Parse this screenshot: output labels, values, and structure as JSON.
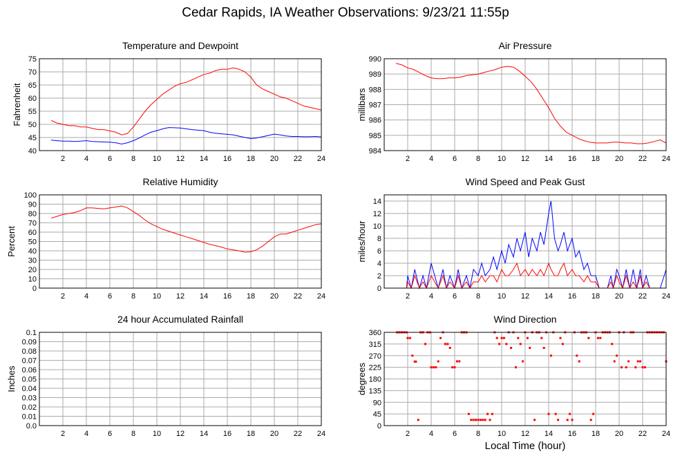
{
  "page": {
    "title": "Cedar Rapids, IA Weather Observations: 9/23/21 11:55p"
  },
  "colors": {
    "primary": "#ff0000",
    "secondary": "#0000ff",
    "grid": "#aaaaaa",
    "frame": "#000000"
  },
  "chart_data": [
    {
      "id": "temp",
      "type": "line",
      "title": "Temperature and Dewpoint",
      "ylabel": "Fahrenheit",
      "xlim": [
        0,
        24
      ],
      "ylim": [
        40,
        75
      ],
      "xticks": [
        2,
        4,
        6,
        8,
        10,
        12,
        14,
        16,
        18,
        20,
        22,
        24
      ],
      "yticks": [
        40,
        45,
        50,
        55,
        60,
        65,
        70,
        75
      ],
      "grid": true,
      "series": [
        {
          "color": "#ff0000",
          "x": [
            1,
            1.5,
            2,
            2.5,
            3,
            3.5,
            4,
            4.5,
            5,
            5.5,
            6,
            6.5,
            7,
            7.5,
            8,
            8.5,
            9,
            9.5,
            10,
            10.5,
            11,
            11.5,
            12,
            12.5,
            13,
            13.5,
            14,
            14.5,
            15,
            15.5,
            16,
            16.5,
            17,
            17.5,
            18,
            18.5,
            19,
            19.5,
            20,
            20.5,
            21,
            21.5,
            22,
            22.5,
            23,
            23.5,
            24
          ],
          "y": [
            51.5,
            50.5,
            50,
            49.5,
            49.5,
            49,
            49,
            48.5,
            48,
            48,
            47.5,
            47,
            46,
            46.5,
            49,
            52,
            55,
            57.5,
            59.5,
            61.5,
            63,
            64.5,
            65.5,
            66,
            67,
            68,
            69,
            69.5,
            70.5,
            71,
            71,
            71.5,
            71,
            70,
            68,
            65,
            63.5,
            62.5,
            61.5,
            60.5,
            60,
            59,
            58,
            57,
            56.5,
            56,
            55.5
          ]
        },
        {
          "color": "#0000ff",
          "x": [
            1,
            1.5,
            2,
            2.5,
            3,
            3.5,
            4,
            4.5,
            5,
            5.5,
            6,
            6.5,
            7,
            7.5,
            8,
            8.5,
            9,
            9.5,
            10,
            10.5,
            11,
            11.5,
            12,
            12.5,
            13,
            13.5,
            14,
            14.5,
            15,
            15.5,
            16,
            16.5,
            17,
            17.5,
            18,
            18.5,
            19,
            19.5,
            20,
            20.5,
            21,
            21.5,
            22,
            22.5,
            23,
            23.5,
            24
          ],
          "y": [
            44,
            43.8,
            43.6,
            43.6,
            43.5,
            43.6,
            43.8,
            43.5,
            43.4,
            43.3,
            43.2,
            43,
            42.5,
            43,
            43.8,
            44.8,
            46,
            47,
            47.6,
            48.3,
            48.8,
            48.7,
            48.6,
            48.3,
            48,
            47.8,
            47.6,
            47,
            46.6,
            46.4,
            46.2,
            46,
            45.5,
            45,
            44.6,
            44.8,
            45.3,
            45.8,
            46.3,
            46,
            45.6,
            45.4,
            45.4,
            45.3,
            45.3,
            45.4,
            45.2
          ]
        }
      ]
    },
    {
      "id": "pressure",
      "type": "line",
      "title": "Air Pressure",
      "ylabel": "millibars",
      "xlim": [
        0,
        24
      ],
      "ylim": [
        984,
        990
      ],
      "xticks": [
        2,
        4,
        6,
        8,
        10,
        12,
        14,
        16,
        18,
        20,
        22,
        24
      ],
      "yticks": [
        984,
        985,
        986,
        987,
        988,
        989,
        990
      ],
      "grid": true,
      "series": [
        {
          "color": "#ff0000",
          "x": [
            1,
            1.5,
            2,
            2.5,
            3,
            3.5,
            4,
            4.5,
            5,
            5.5,
            6,
            6.5,
            7,
            7.5,
            8,
            8.5,
            9,
            9.5,
            10,
            10.5,
            11,
            11.5,
            12,
            12.5,
            13,
            13.5,
            14,
            14.5,
            15,
            15.5,
            16,
            16.5,
            17,
            17.5,
            18,
            18.5,
            19,
            19.5,
            20,
            20.5,
            21,
            21.5,
            22,
            22.5,
            23,
            23.5,
            24
          ],
          "y": [
            989.7,
            989.6,
            989.4,
            989.3,
            989.1,
            988.9,
            988.75,
            988.7,
            988.7,
            988.75,
            988.75,
            988.8,
            988.9,
            988.95,
            989.0,
            989.1,
            989.2,
            989.3,
            989.45,
            989.5,
            989.45,
            989.2,
            988.85,
            988.5,
            988.0,
            987.4,
            986.8,
            986.1,
            985.6,
            985.2,
            985.0,
            984.8,
            984.65,
            984.55,
            984.5,
            984.5,
            984.5,
            984.55,
            984.55,
            984.5,
            984.5,
            984.45,
            984.45,
            984.5,
            984.6,
            984.7,
            984.5
          ]
        }
      ]
    },
    {
      "id": "humidity",
      "type": "line",
      "title": "Relative Humidity",
      "ylabel": "Percent",
      "xlim": [
        0,
        24
      ],
      "ylim": [
        0,
        100
      ],
      "xticks": [
        2,
        4,
        6,
        8,
        10,
        12,
        14,
        16,
        18,
        20,
        22,
        24
      ],
      "yticks": [
        0,
        10,
        20,
        30,
        40,
        50,
        60,
        70,
        80,
        90,
        100
      ],
      "grid": true,
      "series": [
        {
          "color": "#ff0000",
          "x": [
            1,
            1.5,
            2,
            2.5,
            3,
            3.5,
            4,
            4.5,
            5,
            5.5,
            6,
            6.5,
            7,
            7.5,
            8,
            8.5,
            9,
            9.5,
            10,
            10.5,
            11,
            11.5,
            12,
            12.5,
            13,
            13.5,
            14,
            14.5,
            15,
            15.5,
            16,
            16.5,
            17,
            17.5,
            18,
            18.5,
            19,
            19.5,
            20,
            20.5,
            21,
            21.5,
            22,
            22.5,
            23,
            23.5,
            24
          ],
          "y": [
            75,
            77,
            79,
            80,
            81,
            83,
            86,
            86,
            85.5,
            85,
            86,
            87,
            88,
            86,
            82,
            78,
            73,
            69,
            66,
            63,
            61,
            59,
            57,
            55,
            53,
            51,
            49,
            47,
            45.5,
            44,
            42,
            41,
            40,
            38.5,
            39,
            41,
            45,
            50,
            55,
            58,
            58,
            60,
            62,
            64,
            66,
            68,
            69
          ]
        }
      ]
    },
    {
      "id": "wind",
      "type": "line",
      "title": "Wind Speed and Peak Gust",
      "ylabel": "miles/hour",
      "xlim": [
        0,
        24
      ],
      "ylim": [
        0,
        15
      ],
      "xticks": [
        2,
        4,
        6,
        8,
        10,
        12,
        14,
        16,
        18,
        20,
        22,
        24
      ],
      "yticks": [
        0,
        2,
        4,
        6,
        8,
        10,
        12,
        14
      ],
      "grid": true,
      "series": [
        {
          "color": "#0000ff",
          "x": [
            1,
            1.9,
            2,
            2.3,
            2.6,
            3,
            3.3,
            3.6,
            4,
            4.3,
            4.6,
            5,
            5.3,
            5.6,
            6,
            6.3,
            6.6,
            7,
            7.3,
            7.6,
            8,
            8.3,
            8.6,
            9,
            9.3,
            9.6,
            10,
            10.3,
            10.6,
            11,
            11.3,
            11.6,
            12,
            12.3,
            12.6,
            13,
            13.3,
            13.6,
            14,
            14.2,
            14.5,
            14.8,
            15,
            15.3,
            15.6,
            16,
            16.3,
            16.6,
            17,
            17.3,
            17.6,
            18,
            18.3,
            18.6,
            19,
            19.3,
            19.5,
            19.8,
            20,
            20.3,
            20.6,
            20.9,
            21.2,
            21.5,
            21.8,
            22,
            22.3,
            22.6,
            23,
            23.5,
            24
          ],
          "y": [
            0,
            0,
            2,
            0,
            3,
            0,
            2,
            0,
            4,
            2,
            0,
            3,
            0,
            2,
            0,
            3,
            0,
            2,
            0,
            3,
            2,
            4,
            2,
            3,
            5,
            3,
            6,
            4,
            7,
            5,
            8,
            6,
            9,
            5,
            8,
            6,
            9,
            7,
            12,
            14,
            8,
            6,
            7,
            9,
            6,
            8,
            5,
            6,
            3,
            4,
            2,
            2,
            0,
            0,
            0,
            2,
            0,
            3,
            2,
            0,
            3,
            0,
            3,
            0,
            3,
            0,
            2,
            0,
            0,
            0,
            3
          ]
        },
        {
          "color": "#ff0000",
          "x": [
            1,
            1.9,
            2,
            2.3,
            2.6,
            3,
            3.3,
            3.6,
            4,
            4.3,
            4.6,
            5,
            5.3,
            5.6,
            6,
            6.3,
            6.6,
            7,
            7.3,
            7.6,
            8,
            8.3,
            8.6,
            9,
            9.3,
            9.6,
            10,
            10.3,
            10.6,
            11,
            11.3,
            11.6,
            12,
            12.3,
            12.6,
            13,
            13.3,
            13.6,
            14,
            14.2,
            14.5,
            14.8,
            15,
            15.3,
            15.6,
            16,
            16.3,
            16.6,
            17,
            17.3,
            17.6,
            18,
            18.3,
            18.6,
            19,
            19.3,
            19.5,
            19.8,
            20,
            20.3,
            20.6,
            20.9,
            21.2,
            21.5,
            21.8,
            22,
            22.3,
            22.6,
            23,
            23.5,
            24
          ],
          "y": [
            0,
            0,
            1,
            0,
            2,
            0,
            1,
            0,
            2,
            1,
            0,
            2,
            0,
            1,
            0,
            2,
            0,
            1,
            0,
            1,
            1,
            2,
            1,
            2,
            2,
            1,
            3,
            2,
            2,
            3,
            4,
            2,
            3,
            2,
            3,
            2,
            3,
            2,
            4,
            3,
            2,
            2,
            3,
            4,
            2,
            3,
            2,
            2,
            1,
            2,
            1,
            1,
            0,
            0,
            0,
            1,
            0,
            2,
            1,
            0,
            2,
            0,
            1,
            0,
            2,
            0,
            1,
            0,
            0,
            0,
            0
          ]
        }
      ]
    },
    {
      "id": "rain",
      "type": "line",
      "title": "24 hour Accumulated Rainfall",
      "ylabel": "Inches",
      "xlim": [
        0,
        24
      ],
      "ylim": [
        0,
        0.1
      ],
      "xticks": [
        2,
        4,
        6,
        8,
        10,
        12,
        14,
        16,
        18,
        20,
        22,
        24
      ],
      "yticks": [
        "0.0",
        "0.01",
        "0.02",
        "0.03",
        "0.04",
        "0.05",
        "0.06",
        "0.07",
        "0.08",
        "0.09",
        "0.1"
      ],
      "grid": true,
      "series": [
        {
          "color": "#ff0000",
          "x": [
            0.8,
            24
          ],
          "y": [
            0,
            0
          ]
        }
      ]
    },
    {
      "id": "direction",
      "type": "scatter",
      "title": "Wind Direction",
      "ylabel": "degrees",
      "xlabel": "Local Time (hour)",
      "xlim": [
        0,
        24
      ],
      "ylim": [
        0,
        360
      ],
      "xticks": [
        2,
        4,
        6,
        8,
        10,
        12,
        14,
        16,
        18,
        20,
        22,
        24
      ],
      "yticks": [
        0,
        45,
        90,
        135,
        180,
        225,
        270,
        315,
        360
      ],
      "grid": true,
      "series": [
        {
          "color": "#ff0000",
          "x": [
            1.1,
            1.3,
            1.5,
            1.7,
            1.9,
            2.0,
            2.2,
            2.4,
            2.6,
            2.7,
            2.9,
            3.1,
            3.3,
            3.5,
            3.7,
            3.9,
            4.0,
            4.2,
            4.4,
            4.6,
            4.8,
            5.0,
            5.2,
            5.4,
            5.6,
            5.8,
            6.0,
            6.2,
            6.4,
            6.6,
            6.8,
            7.0,
            7.2,
            7.4,
            7.6,
            7.8,
            8.0,
            8.2,
            8.4,
            8.6,
            8.8,
            9.0,
            9.2,
            9.4,
            9.6,
            9.8,
            10.0,
            10.2,
            10.4,
            10.6,
            10.8,
            11.0,
            11.2,
            11.4,
            11.6,
            11.8,
            12.0,
            12.2,
            12.4,
            12.6,
            12.8,
            13.0,
            13.2,
            13.4,
            13.6,
            13.8,
            14.0,
            14.2,
            14.4,
            14.6,
            14.8,
            15.0,
            15.2,
            15.4,
            15.6,
            15.8,
            16.0,
            16.2,
            16.4,
            16.6,
            16.8,
            17.0,
            17.2,
            17.4,
            17.6,
            17.8,
            18.0,
            18.2,
            18.4,
            18.6,
            18.8,
            19.0,
            19.2,
            19.4,
            19.6,
            19.8,
            20.0,
            20.2,
            20.4,
            20.6,
            20.8,
            21.0,
            21.2,
            21.4,
            21.6,
            21.8,
            22.0,
            22.2,
            22.4,
            22.6,
            22.8,
            23.0,
            23.2,
            23.4,
            23.6,
            23.8,
            24.0
          ],
          "y": [
            360,
            360,
            360,
            360,
            360,
            338,
            338,
            270,
            247,
            247,
            22,
            360,
            360,
            315,
            360,
            360,
            225,
            225,
            225,
            248,
            338,
            360,
            315,
            315,
            300,
            225,
            225,
            248,
            248,
            360,
            360,
            360,
            45,
            22,
            22,
            22,
            22,
            22,
            22,
            22,
            45,
            22,
            45,
            360,
            338,
            315,
            338,
            338,
            315,
            360,
            300,
            360,
            225,
            338,
            315,
            248,
            360,
            338,
            300,
            360,
            22,
            360,
            360,
            338,
            300,
            360,
            45,
            270,
            360,
            45,
            22,
            338,
            315,
            360,
            22,
            45,
            22,
            360,
            270,
            248,
            360,
            360,
            360,
            338,
            22,
            45,
            360,
            338,
            338,
            360,
            360,
            360,
            360,
            315,
            248,
            270,
            360,
            225,
            360,
            225,
            248,
            360,
            360,
            225,
            248,
            248,
            225,
            225,
            360,
            360,
            360,
            360,
            360,
            360,
            360,
            360,
            248
          ]
        }
      ]
    }
  ]
}
